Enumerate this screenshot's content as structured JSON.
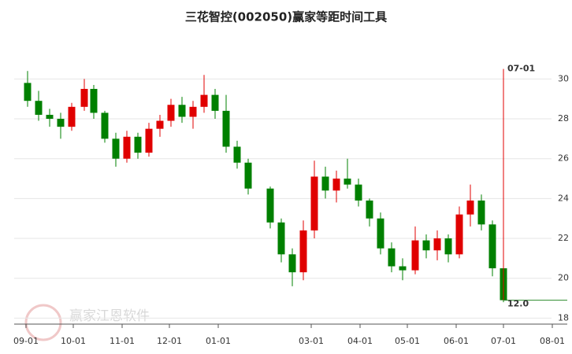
{
  "chart_data": {
    "type": "candlestick",
    "title": "三花智控(002050)赢家等距时间工具",
    "watermark": "赢家江恩软件",
    "x": [
      "09-02",
      "09-09",
      "09-16",
      "09-23",
      "09-30",
      "10-08",
      "10-14",
      "10-21",
      "10-28",
      "11-04",
      "11-11",
      "11-18",
      "11-25",
      "12-02",
      "12-09",
      "12-16",
      "12-23",
      "12-30",
      "01-06",
      "01-13",
      "01-20",
      "02-03",
      "02-10",
      "02-17",
      "02-24",
      "03-03",
      "03-10",
      "03-17",
      "03-24",
      "03-31",
      "04-07",
      "04-14",
      "04-21",
      "04-28",
      "05-06",
      "05-13",
      "05-20",
      "05-27",
      "06-03",
      "06-10",
      "06-17",
      "06-24",
      "07-01"
    ],
    "open": [
      29.8,
      28.9,
      28.2,
      28.0,
      27.6,
      28.6,
      29.5,
      28.3,
      27.0,
      26.0,
      27.1,
      26.3,
      27.5,
      27.9,
      28.7,
      28.1,
      28.6,
      29.2,
      28.4,
      26.6,
      25.8,
      24.5,
      22.8,
      21.2,
      20.3,
      22.4,
      25.1,
      24.4,
      25.0,
      24.7,
      23.9,
      23.0,
      21.5,
      20.6,
      20.4,
      21.9,
      21.4,
      22.0,
      21.2,
      23.2,
      23.9,
      22.7,
      20.5
    ],
    "high": [
      30.4,
      29.4,
      28.5,
      28.3,
      28.8,
      30.0,
      29.7,
      28.4,
      27.3,
      27.4,
      27.3,
      27.8,
      28.2,
      29.0,
      29.1,
      28.9,
      30.2,
      29.5,
      29.2,
      26.9,
      26.0,
      24.6,
      23.0,
      21.5,
      22.9,
      25.9,
      25.6,
      25.4,
      26.0,
      25.0,
      24.0,
      23.3,
      21.8,
      21.0,
      22.6,
      22.2,
      22.4,
      22.2,
      23.6,
      24.7,
      24.2,
      22.9,
      20.6
    ],
    "low": [
      28.6,
      27.9,
      27.6,
      27.0,
      27.4,
      28.4,
      28.0,
      26.8,
      25.6,
      25.8,
      26.0,
      26.1,
      27.1,
      27.6,
      27.8,
      27.5,
      28.3,
      28.0,
      26.3,
      25.5,
      24.2,
      22.5,
      20.8,
      19.6,
      19.9,
      22.0,
      24.0,
      23.8,
      24.5,
      23.6,
      22.6,
      21.2,
      20.3,
      19.9,
      20.2,
      21.0,
      20.9,
      20.8,
      21.0,
      22.6,
      22.4,
      20.1,
      18.8
    ],
    "close": [
      28.9,
      28.2,
      28.0,
      27.6,
      28.6,
      29.5,
      28.3,
      27.0,
      26.0,
      27.1,
      26.3,
      27.5,
      27.9,
      28.7,
      28.1,
      28.6,
      29.2,
      28.4,
      26.6,
      25.8,
      24.5,
      22.8,
      21.2,
      20.3,
      22.4,
      25.1,
      24.4,
      25.0,
      24.7,
      23.9,
      23.0,
      21.5,
      20.6,
      20.4,
      21.9,
      21.4,
      22.0,
      21.2,
      23.2,
      23.9,
      22.7,
      20.5,
      18.9
    ],
    "up_color": "#e00000",
    "down_color": "#008000",
    "xticks": [
      "09-01",
      "10-01",
      "11-01",
      "12-01",
      "01-01",
      "03-01",
      "04-01",
      "05-01",
      "06-01",
      "07-01",
      "08-01"
    ],
    "ylim": [
      17.7,
      31.0
    ],
    "yticks": [
      18,
      20,
      22,
      24,
      26,
      28,
      30
    ],
    "grid": true,
    "marker": {
      "date": "07-01",
      "label": "07-01",
      "top": 30.5,
      "level": 18.9,
      "level_label": "12.0",
      "color": "#e00000"
    }
  }
}
